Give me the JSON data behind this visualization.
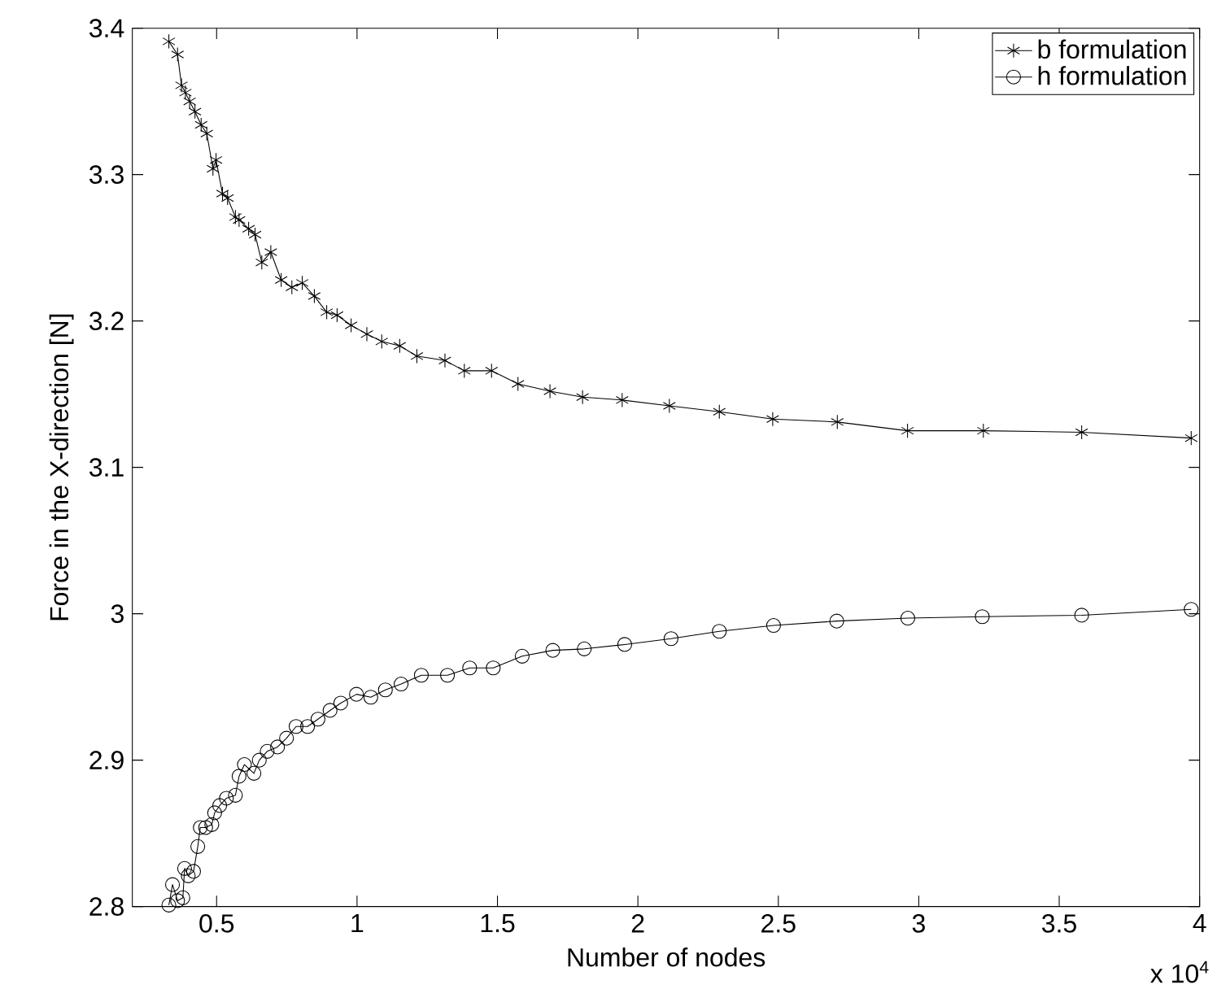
{
  "chart_data": {
    "type": "line",
    "xlabel": "Number of nodes",
    "ylabel": "Force in the X-direction [N]",
    "annotations": [
      "x 10$^{4}$"
    ],
    "xlim": [
      0.2,
      4
    ],
    "ylim": [
      2.8,
      3.4
    ],
    "xticks": [
      0.5,
      1,
      1.5,
      2,
      2.5,
      3,
      3.5,
      4
    ],
    "yticks": [
      2.8,
      2.9,
      3,
      3.1,
      3.2,
      3.3,
      3.4
    ],
    "legend": "top right",
    "grid": false,
    "line_style": "solid",
    "series": [
      {
        "name": "b formulation",
        "color": "#000000",
        "marker": "cross",
        "x": [
          0.33,
          0.361,
          0.375,
          0.389,
          0.404,
          0.423,
          0.445,
          0.465,
          0.487,
          0.498,
          0.521,
          0.539,
          0.567,
          0.58,
          0.614,
          0.637,
          0.661,
          0.693,
          0.73,
          0.768,
          0.805,
          0.848,
          0.892,
          0.929,
          0.979,
          1.035,
          1.088,
          1.152,
          1.213,
          1.313,
          1.382,
          1.479,
          1.573,
          1.687,
          1.803,
          1.944,
          2.112,
          2.29,
          2.48,
          2.71,
          2.96,
          3.23,
          3.58,
          3.97
        ],
        "values": [
          3.391,
          3.382,
          3.361,
          3.356,
          3.35,
          3.343,
          3.334,
          3.328,
          3.304,
          3.31,
          3.287,
          3.284,
          3.271,
          3.269,
          3.263,
          3.259,
          3.24,
          3.247,
          3.228,
          3.223,
          3.226,
          3.217,
          3.206,
          3.204,
          3.197,
          3.191,
          3.186,
          3.183,
          3.176,
          3.173,
          3.166,
          3.166,
          3.157,
          3.152,
          3.148,
          3.146,
          3.142,
          3.138,
          3.133,
          3.131,
          3.125,
          3.125,
          3.124,
          3.12
        ]
      },
      {
        "name": "h formulation",
        "color": "#000000",
        "marker": "circle",
        "x": [
          0.33,
          0.343,
          0.361,
          0.38,
          0.386,
          0.399,
          0.418,
          0.433,
          0.442,
          0.461,
          0.483,
          0.493,
          0.511,
          0.535,
          0.567,
          0.58,
          0.599,
          0.633,
          0.652,
          0.68,
          0.717,
          0.749,
          0.783,
          0.824,
          0.861,
          0.904,
          0.942,
          0.998,
          1.049,
          1.101,
          1.157,
          1.229,
          1.322,
          1.401,
          1.485,
          1.588,
          1.697,
          1.809,
          1.953,
          2.118,
          2.29,
          2.483,
          2.708,
          2.961,
          3.226,
          3.58,
          3.97
        ],
        "values": [
          2.801,
          2.815,
          2.804,
          2.806,
          2.826,
          2.821,
          2.824,
          2.841,
          2.854,
          2.854,
          2.856,
          2.864,
          2.869,
          2.874,
          2.876,
          2.889,
          2.897,
          2.891,
          2.9,
          2.906,
          2.909,
          2.915,
          2.923,
          2.923,
          2.928,
          2.934,
          2.939,
          2.945,
          2.943,
          2.948,
          2.952,
          2.958,
          2.958,
          2.963,
          2.963,
          2.971,
          2.975,
          2.976,
          2.979,
          2.983,
          2.988,
          2.992,
          2.995,
          2.997,
          2.998,
          2.999,
          3.003
        ]
      }
    ]
  }
}
